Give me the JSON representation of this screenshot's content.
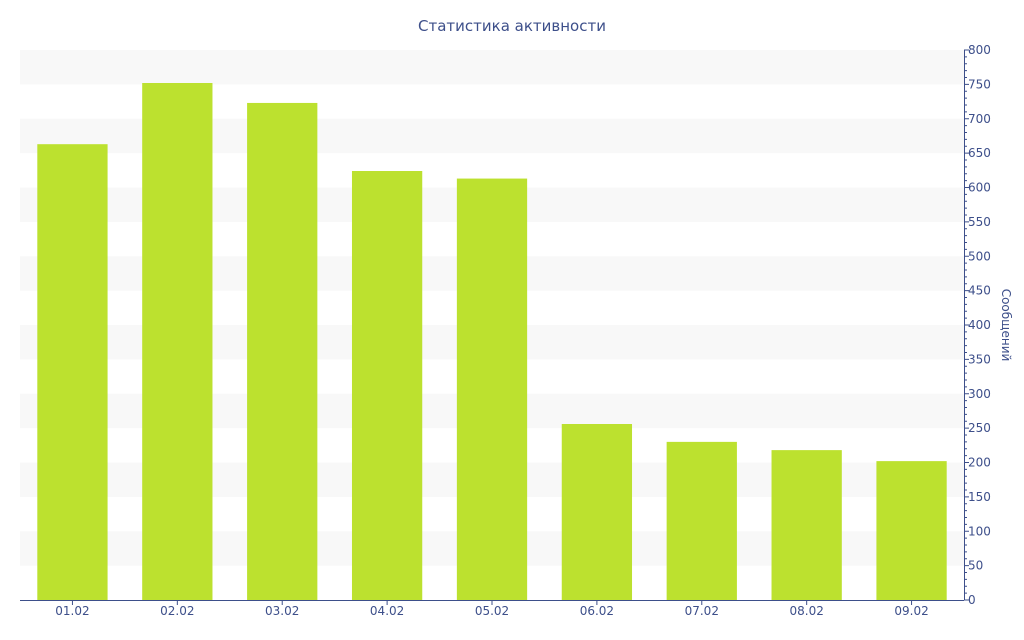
{
  "colors": {
    "bar": "#bce12f",
    "axis": "#3d4f8a",
    "text": "#3d4f8a",
    "band": "#f8f8f8"
  },
  "chart_data": {
    "type": "bar",
    "title": "Статистика активности",
    "xlabel": "",
    "ylabel": "Сообщений",
    "y_axis_side": "right",
    "categories": [
      "01.02",
      "02.02",
      "03.02",
      "04.02",
      "05.02",
      "06.02",
      "07.02",
      "08.02",
      "09.02"
    ],
    "values": [
      663,
      752,
      723,
      624,
      613,
      256,
      230,
      218,
      202
    ],
    "ylim": [
      0,
      800
    ],
    "yticks": [
      0,
      50,
      100,
      150,
      200,
      250,
      300,
      350,
      400,
      450,
      500,
      550,
      600,
      650,
      700,
      750,
      800
    ],
    "grid": "alternating horizontal bands",
    "legend": "none"
  }
}
